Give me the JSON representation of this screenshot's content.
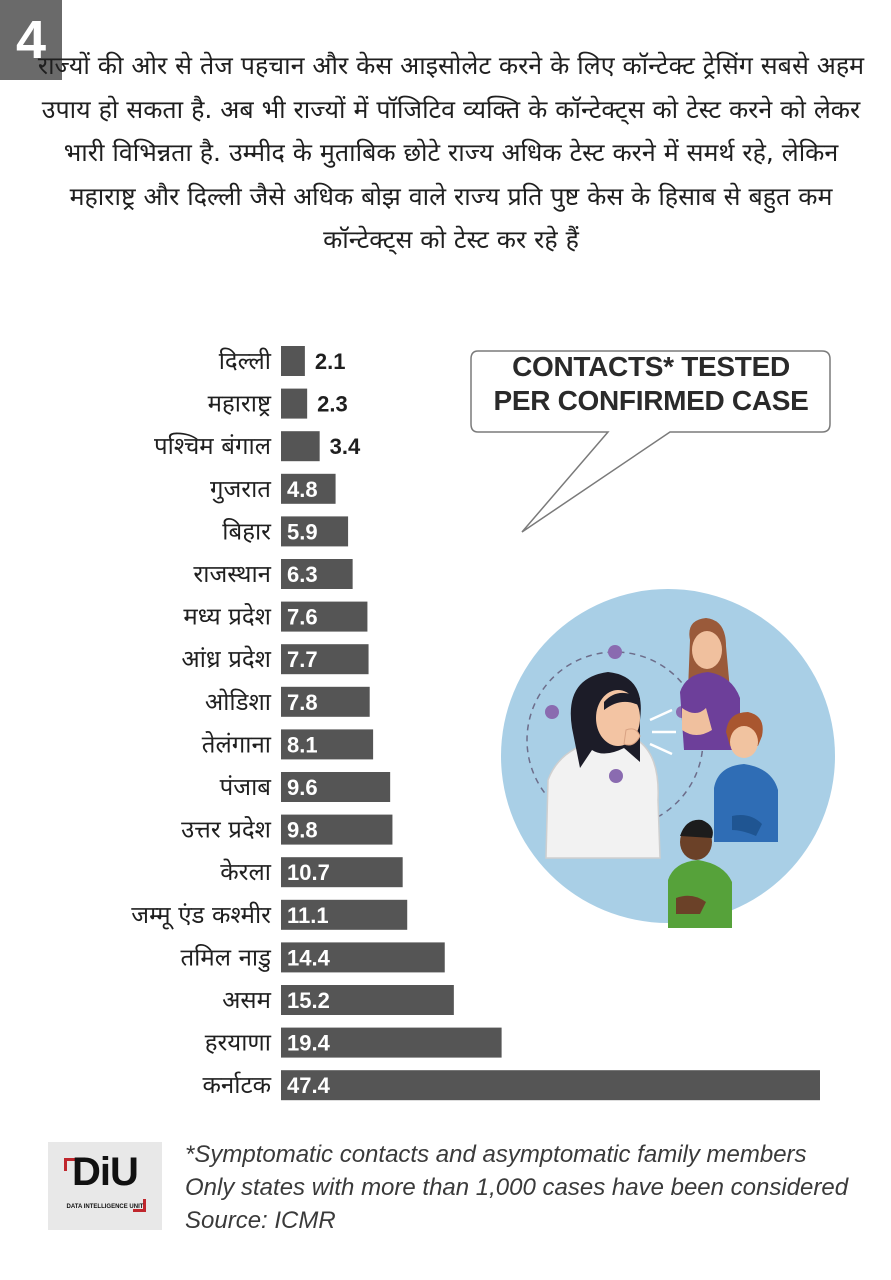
{
  "badge_number": "4",
  "intro_text": "राज्यों की ओर से तेज पहचान और केस आइसोलेट करने के लिए कॉन्टेक्ट ट्रेसिंग सबसे अहम उपाय हो सकता है. अब भी राज्यों में पॉजिटिव व्यक्ति के कॉन्टेक्ट्स को टेस्ट करने को लेकर भारी विभिन्नता है. उम्मीद के मुताबिक छोटे राज्य अधिक टेस्ट करने में समर्थ रहे, लेकिन महाराष्ट्र और दिल्ली जैसे अधिक बोझ वाले राज्य प्रति पुष्ट केस के हिसाब से बहुत कम कॉन्टेक्ट्स को टेस्ट कर रहे हैं",
  "bubble": {
    "line1": "CONTACTS* TESTED",
    "line2": "PER CONFIRMED CASE"
  },
  "chart_data": {
    "type": "bar",
    "orientation": "horizontal",
    "title": "CONTACTS* TESTED PER CONFIRMED CASE",
    "categories": [
      "दिल्ली",
      "महाराष्ट्र",
      "पश्चिम बंगाल",
      "गुजरात",
      "बिहार",
      "राजस्थान",
      "मध्य प्रदेश",
      "आंध्र प्रदेश",
      "ओडिशा",
      "तेलंगाना",
      "पंजाब",
      "उत्तर प्रदेश",
      "केरला",
      "जम्मू एंड कश्मीर",
      "तमिल नाडु",
      "असम",
      "हरयाणा",
      "कर्नाटक"
    ],
    "values": [
      2.1,
      2.3,
      3.4,
      4.8,
      5.9,
      6.3,
      7.6,
      7.7,
      7.8,
      8.1,
      9.6,
      9.8,
      10.7,
      11.1,
      14.4,
      15.2,
      19.4,
      47.4
    ],
    "value_labels": [
      "2.1",
      "2.3",
      "3.4",
      "4.8",
      "5.9",
      "6.3",
      "7.6",
      "7.7",
      "7.8",
      "8.1",
      "9.6",
      "9.8",
      "10.7",
      "11.1",
      "14.4",
      "15.2",
      "19.4",
      "47.4"
    ],
    "xlim": [
      0,
      47.4
    ],
    "bar_color": "#555555",
    "grid": false
  },
  "logo": {
    "text": "DiU",
    "subtext": "DATA INTELLIGENCE UNIT",
    "accent_color": "#c0272d"
  },
  "footnotes": [
    "*Symptomatic contacts and asymptomatic family members",
    "Only states with more than 1,000 cases have been considered",
    "Source: ICMR"
  ]
}
